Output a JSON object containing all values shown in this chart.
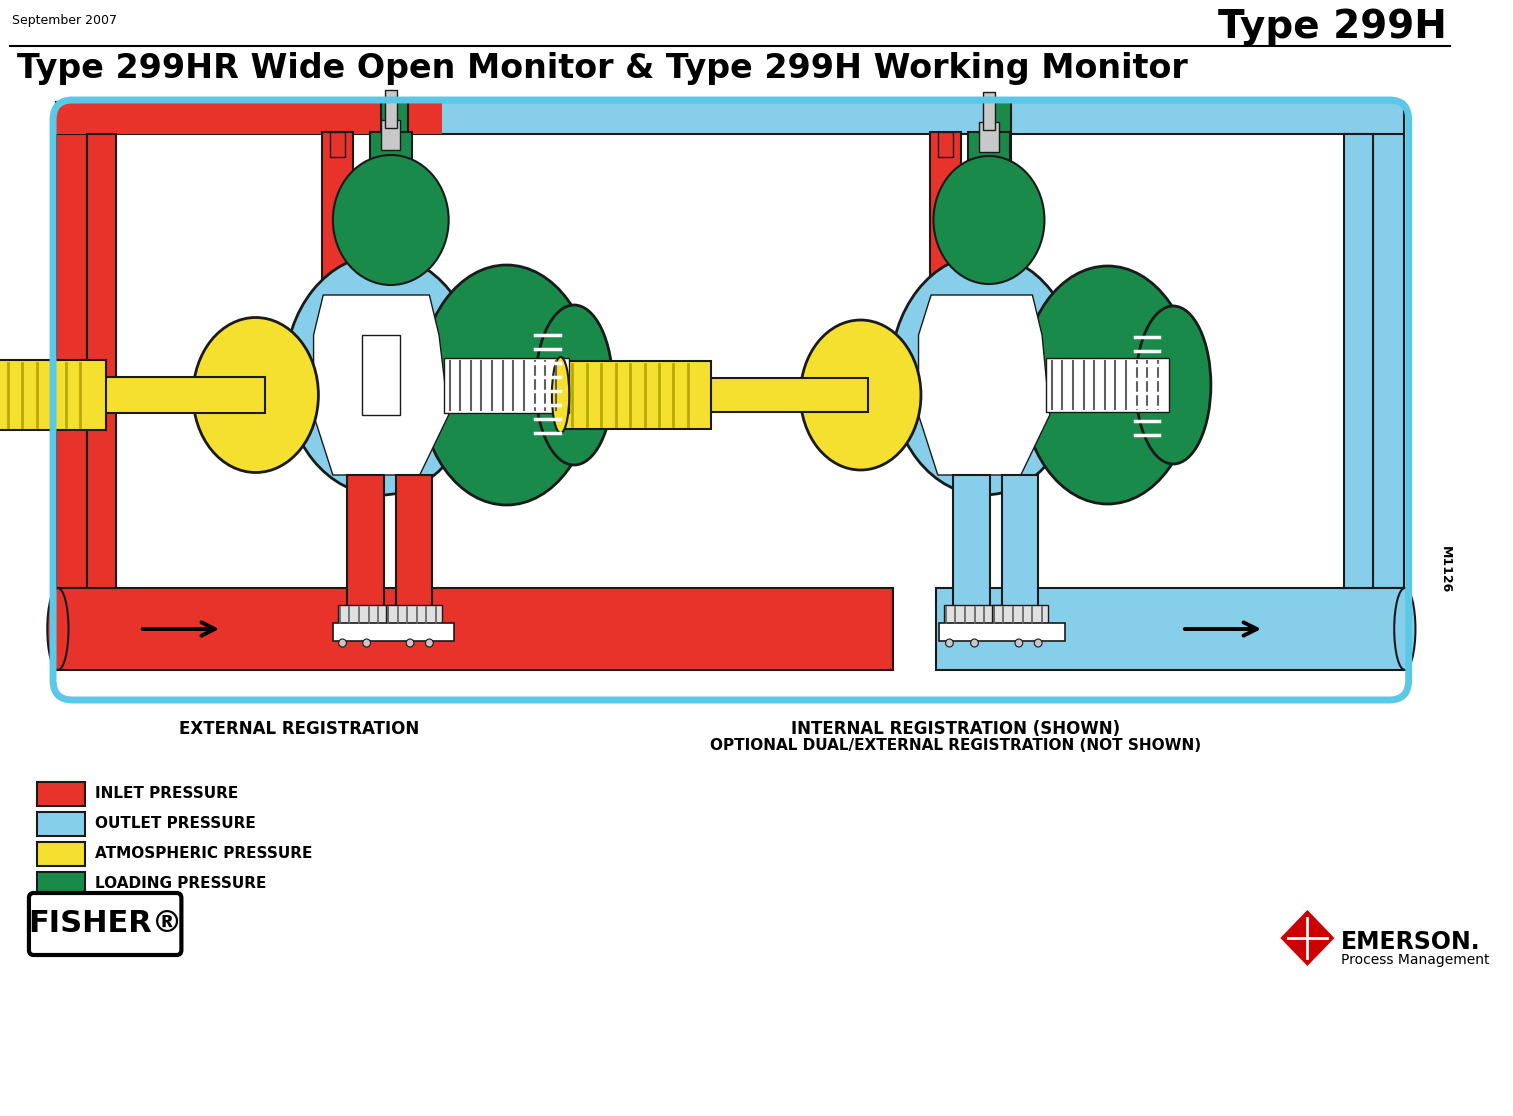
{
  "title_top_right": "Type 299H",
  "date_top_left": "September 2007",
  "main_title": "Type 299HR Wide Open Monitor & Type 299H Working Monitor",
  "bg_color": "#ffffff",
  "border_color": "#5bc8e8",
  "label_left": "EXTERNAL REGISTRATION",
  "label_right_line1": "INTERNAL REGISTRATION (SHOWN)",
  "label_right_line2": "OPTIONAL DUAL/EXTERNAL REGISTRATION (NOT SHOWN)",
  "legend_items": [
    {
      "color": "#e8332a",
      "label": "INLET PRESSURE"
    },
    {
      "color": "#87ceeb",
      "label": "OUTLET PRESSURE"
    },
    {
      "color": "#f5e030",
      "label": "ATMOSPHERIC PRESSURE"
    },
    {
      "color": "#1a8a4a",
      "label": "LOADING PRESSURE"
    }
  ],
  "fisher_text": "FISHER",
  "emerson_text": "EMERSON.",
  "emerson_sub": "Process Management",
  "m1126_text": "M1126",
  "inlet_color": "#e8332a",
  "outlet_color": "#87ceeb",
  "atm_color": "#f5e030",
  "loading_color": "#1a8a4a",
  "outline_color": "#1a1a1a",
  "white": "#ffffff",
  "gray": "#c8c8c8",
  "lt_gray": "#e0e0e0",
  "dk_gray": "#606060"
}
